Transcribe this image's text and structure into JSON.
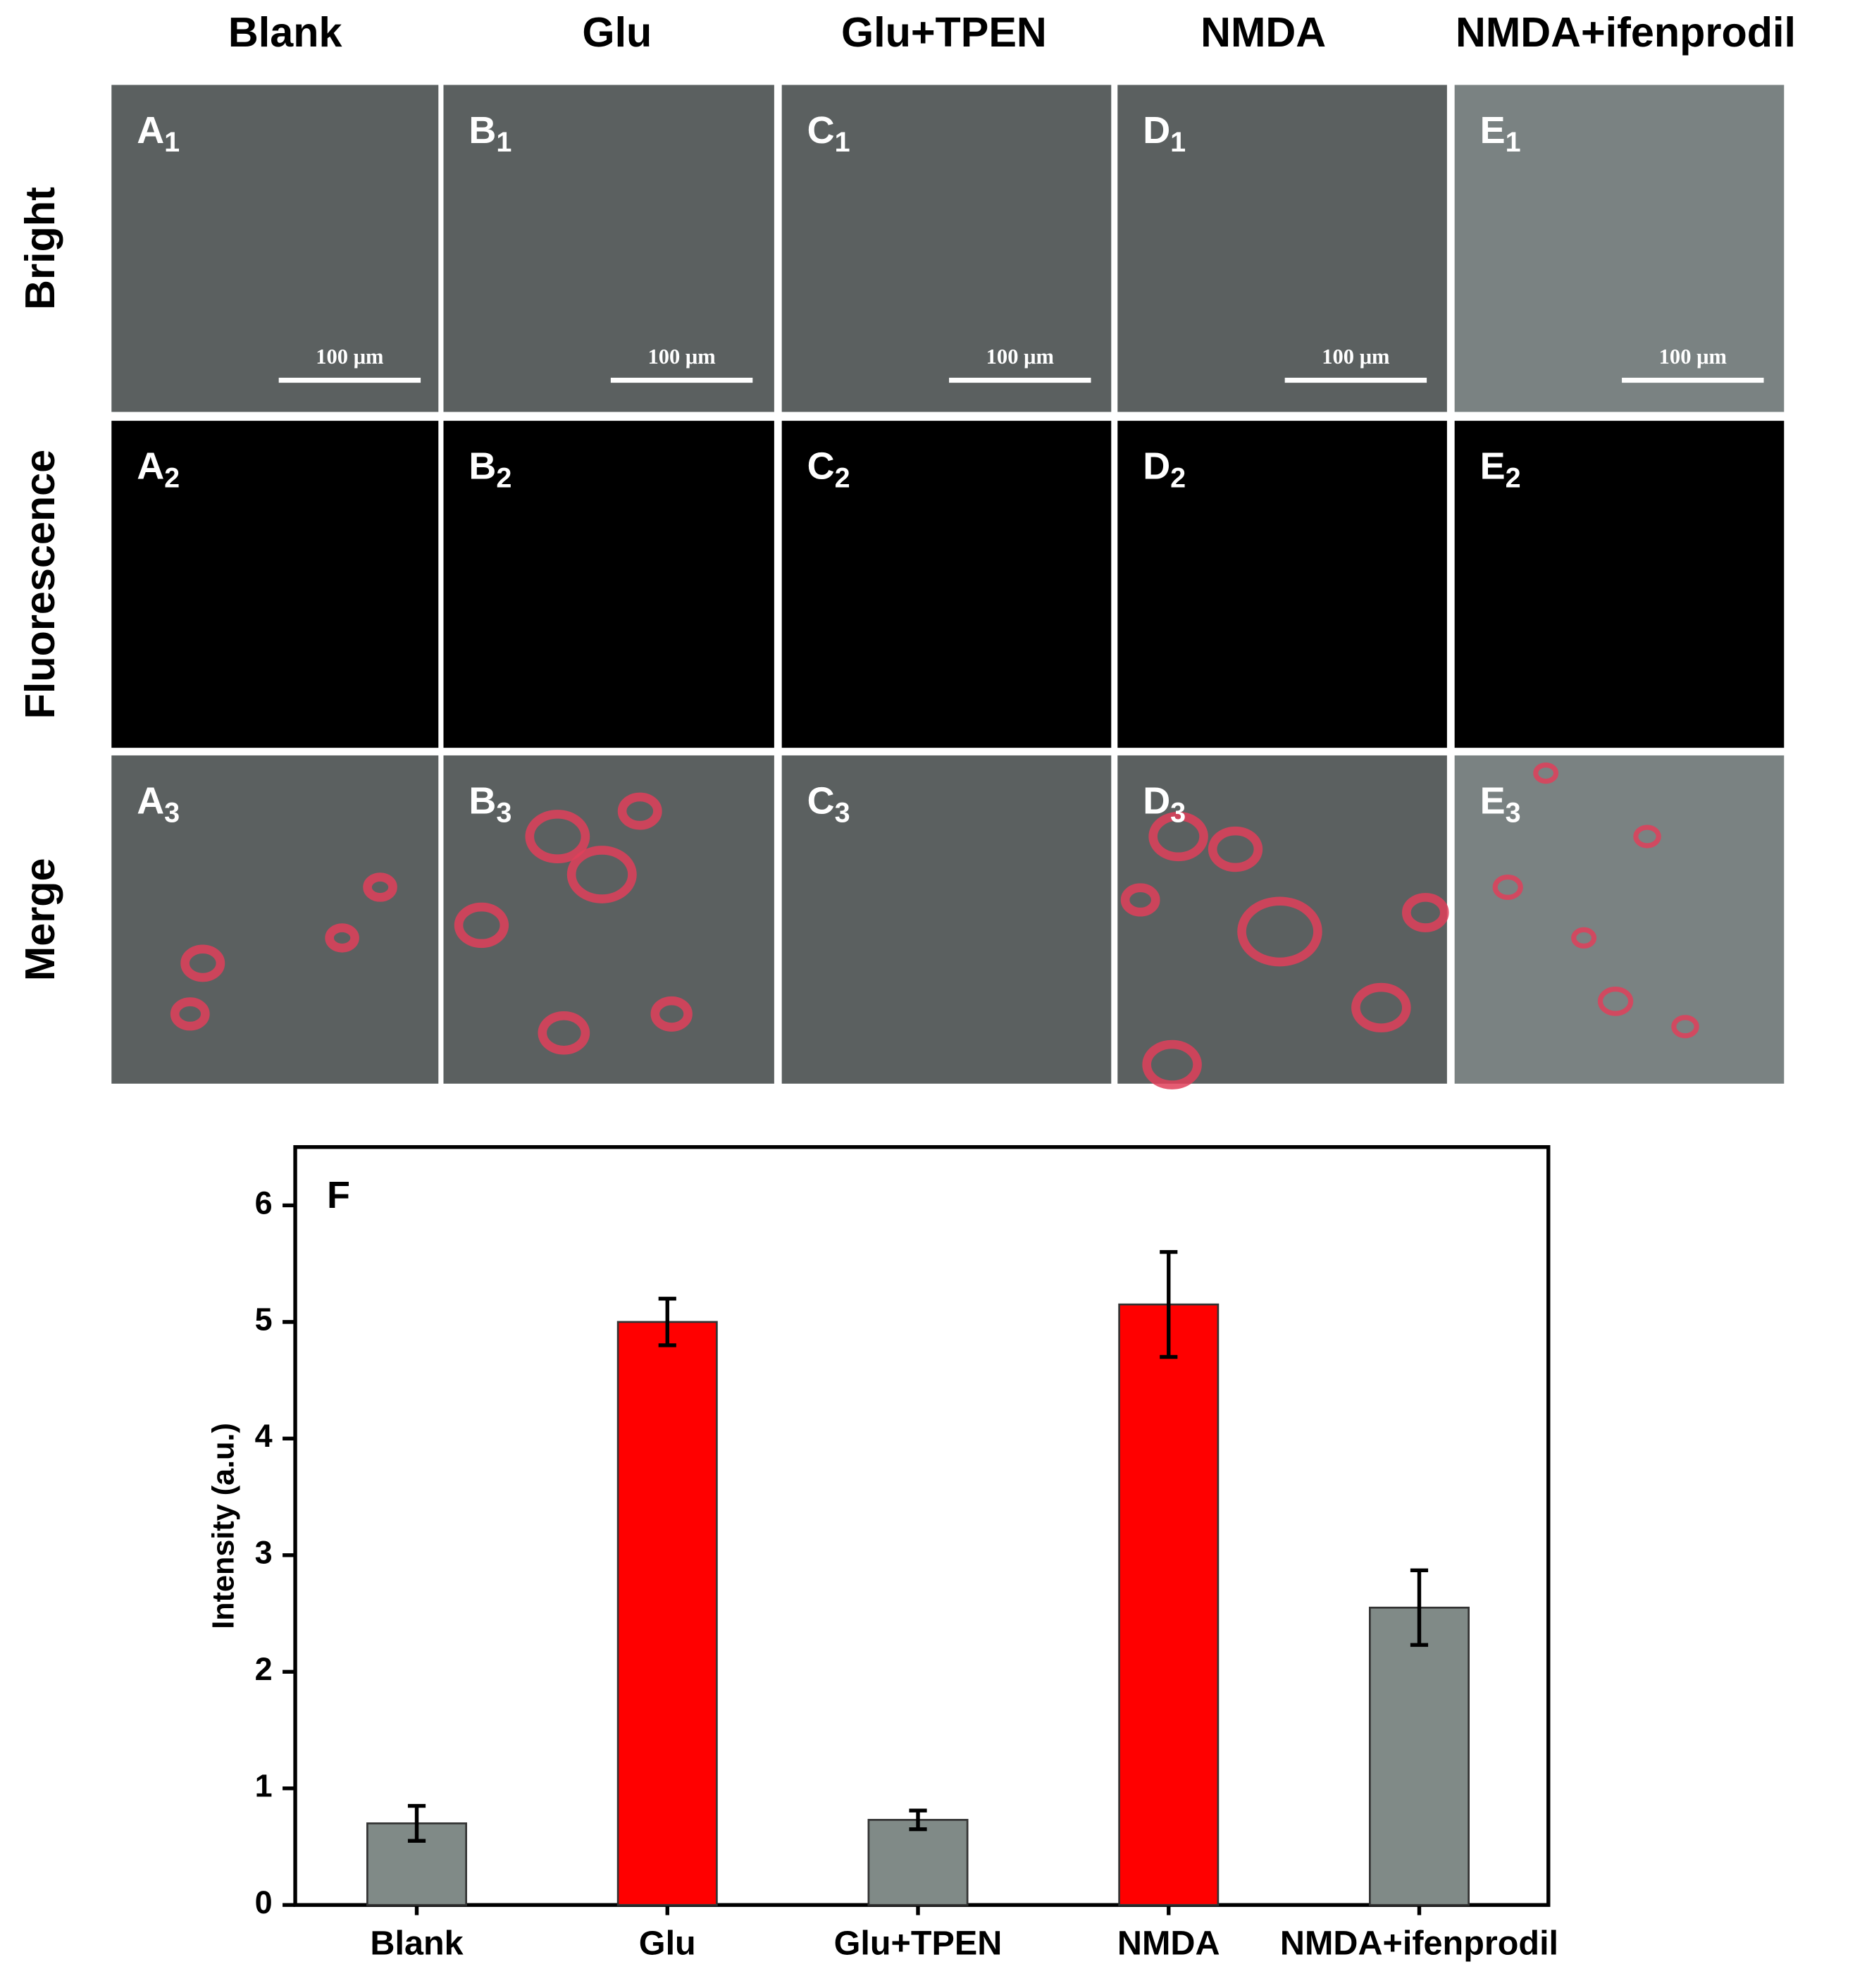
{
  "panels": {
    "columns": [
      "Blank",
      "Glu",
      "Glu+TPEN",
      "NMDA",
      "NMDA+ifenprodil"
    ],
    "rows": [
      "Bright",
      "Fluorescence",
      "Merge"
    ],
    "panel_letters": [
      "A",
      "B",
      "C",
      "D",
      "E"
    ],
    "panel_indices": [
      "1",
      "2",
      "3"
    ],
    "scale_bar": "100 μm"
  },
  "chart_data": {
    "type": "bar",
    "panel_label": "F",
    "ylabel": "Intensity (a.u.)",
    "categories": [
      "Blank",
      "Glu",
      "Glu+TPEN",
      "NMDA",
      "NMDA+ifenprodil"
    ],
    "values": [
      0.7,
      5.0,
      0.73,
      5.15,
      2.55
    ],
    "errors": [
      0.15,
      0.2,
      0.08,
      0.45,
      0.32
    ],
    "colors": [
      "#808a87",
      "#ff0000",
      "#808a87",
      "#ff0000",
      "#808a87"
    ],
    "ylim": [
      0,
      6.5
    ],
    "yticks": [
      0,
      1,
      2,
      3,
      4,
      5,
      6
    ]
  }
}
